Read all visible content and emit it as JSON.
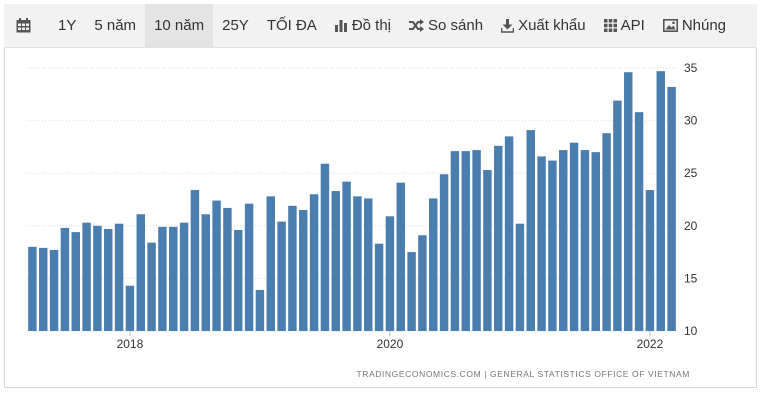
{
  "toolbar": {
    "items": [
      {
        "label": "1Y"
      },
      {
        "label": "5 năm"
      },
      {
        "label": "10 năm",
        "active": true
      },
      {
        "label": "25Y"
      },
      {
        "label": "TỐI ĐA"
      },
      {
        "label": "Đồ thị",
        "icon": "bar-chart-icon"
      },
      {
        "label": "So sánh",
        "icon": "shuffle-icon"
      },
      {
        "label": "Xuất khẩu",
        "icon": "download-icon"
      },
      {
        "label": "API",
        "icon": "grid-icon"
      },
      {
        "label": "Nhúng",
        "icon": "image-icon"
      }
    ],
    "calendar_icon": "calendar-icon"
  },
  "source_text": "TRADINGECONOMICS.COM  |  GENERAL STATISTICS OFFICE OF VIETNAM",
  "colors": {
    "bar": "#4a7eae",
    "grid": "#d9d9d9",
    "toolbar_bg": "#f2f2f2"
  },
  "chart_data": {
    "type": "bar",
    "title": "",
    "xlabel": "",
    "ylabel": "",
    "ylim": [
      10,
      35
    ],
    "yticks": [
      10,
      15,
      20,
      25,
      30,
      35
    ],
    "y_axis_side": "right",
    "grid": "horizontal dotted",
    "x_tick_labels": [
      {
        "label": "2018",
        "index": 9
      },
      {
        "label": "2020",
        "index": 33
      },
      {
        "label": "2022",
        "index": 57
      }
    ],
    "values": [
      18.0,
      17.9,
      17.7,
      19.8,
      19.4,
      20.3,
      20.0,
      19.7,
      20.2,
      14.3,
      21.1,
      18.4,
      19.9,
      19.9,
      20.3,
      23.4,
      21.1,
      22.4,
      21.7,
      19.6,
      22.1,
      13.9,
      22.8,
      20.4,
      21.9,
      21.5,
      23.0,
      25.9,
      23.3,
      24.2,
      22.8,
      22.6,
      18.3,
      20.9,
      24.1,
      17.5,
      19.1,
      22.6,
      24.9,
      27.1,
      27.1,
      27.2,
      25.3,
      27.6,
      28.5,
      20.2,
      29.1,
      26.6,
      26.2,
      27.2,
      27.9,
      27.2,
      27.0,
      28.8,
      31.9,
      34.6,
      30.8,
      23.4,
      34.7,
      33.2
    ]
  }
}
